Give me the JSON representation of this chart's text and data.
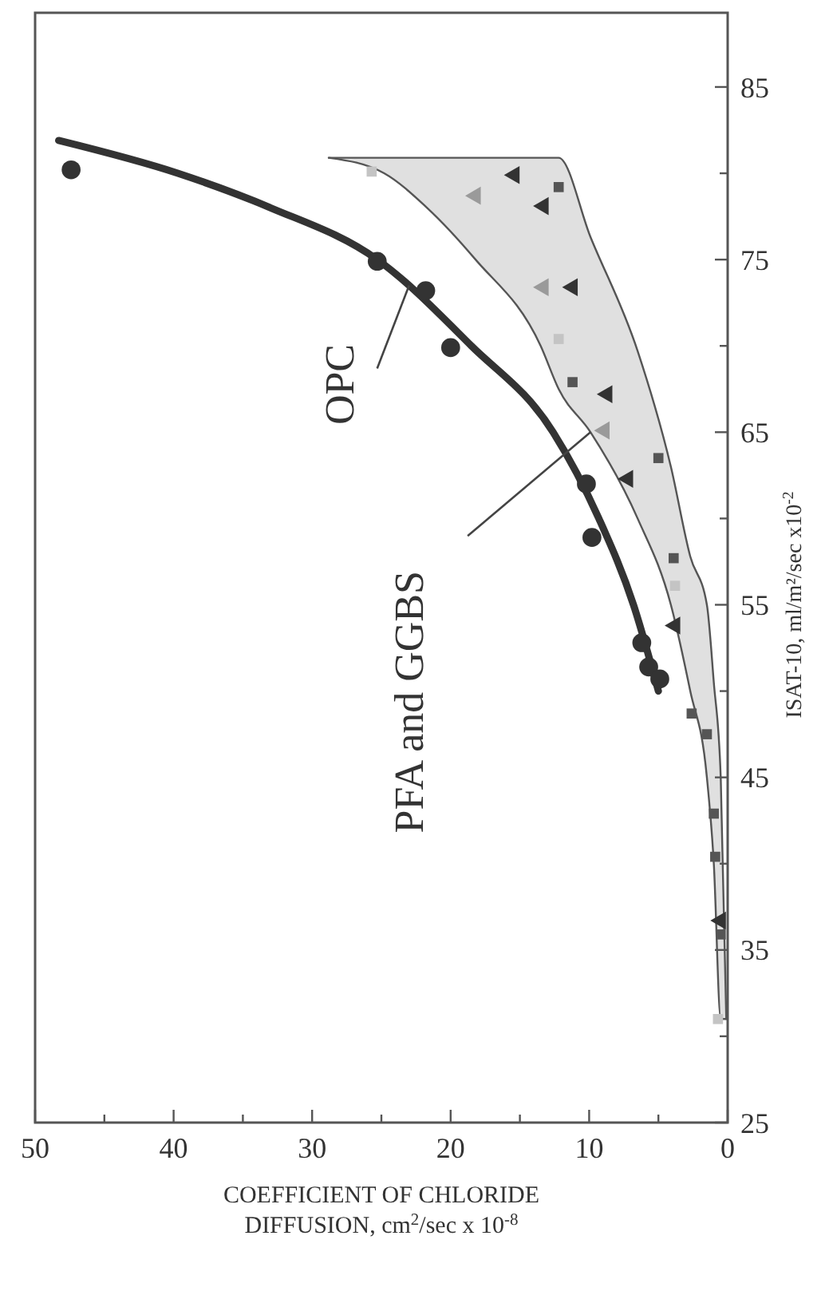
{
  "chart_data": {
    "type": "scatter",
    "xlabel": "COEFFICIENT OF CHLORIDE DIFFUSION, cm$^{2}$/sec x 10$^{-8}$",
    "ylabel": "ISAT-10, ml/m²/sec x10$^{-2}$",
    "xlim": [
      50,
      0
    ],
    "ylim": [
      25,
      89.3
    ],
    "xticks": [
      50,
      {
        "value": 45,
        "label": null
      },
      40,
      {
        "value": 35,
        "label": null
      },
      30,
      {
        "value": 25,
        "label": null
      },
      20,
      {
        "value": 15,
        "label": null
      },
      10,
      {
        "value": 5,
        "label": null
      },
      0
    ],
    "yticks": [
      25,
      {
        "value": 30,
        "label": null
      },
      35,
      {
        "value": 40,
        "label": null
      },
      45,
      {
        "value": 50,
        "label": null
      },
      55,
      {
        "value": 60,
        "label": null
      },
      65,
      {
        "value": 70,
        "label": null
      },
      75,
      {
        "value": 80,
        "label": null
      },
      85
    ],
    "grid": false,
    "series": [
      {
        "type": "line",
        "color": "#555555",
        "x": [
          0.1,
          0.5,
          1.0,
          1.5,
          2.7,
          4.1,
          6.5,
          9.9,
          12.2,
          13.5,
          18.2,
          21.7,
          24.8,
          28.8
        ],
        "values": [
          null,
          null,
          null,
          null,
          null,
          null,
          null,
          null,
          null,
          null,
          null,
          null,
          null,
          null
        ],
        "lower": [
          31,
          31,
          40,
          45,
          50,
          55,
          60,
          65,
          67.5,
          70,
          75,
          78,
          80,
          80.9
        ],
        "upper": [
          31,
          45,
          50.5,
          55,
          57.8,
          63,
          69.7,
          76.3,
          80.9,
          80.9,
          80.9,
          80.9,
          80.9,
          80.9
        ]
      },
      {
        "type": "line",
        "color": "#555555",
        "marker": "none",
        "x": [
          0.1,
          0.5,
          1.0,
          1.5,
          2.7,
          4.1,
          6.5,
          9.9,
          12.2,
          13.5,
          18.2,
          21.7,
          24.8,
          28.8
        ],
        "values": [
          31,
          31,
          40,
          45,
          50,
          55,
          60,
          65,
          67.5,
          70,
          75,
          78,
          80,
          80.9
        ]
      },
      {
        "type": "line",
        "color": "#555555",
        "marker": "none",
        "x": [
          0.1,
          0.5,
          1.0,
          1.5,
          2.7,
          4.1,
          6.5,
          9.9,
          12.2,
          13.5,
          18.2,
          21.7,
          24.8,
          28.8
        ],
        "values": [
          31,
          45,
          50.5,
          55,
          57.8,
          63,
          69.7,
          76.3,
          80.9,
          80.9,
          80.9,
          80.9,
          80.9,
          80.9
        ]
      },
      {
        "type": "line",
        "color": "#333333",
        "marker": "none",
        "line_style": "solid",
        "x": [
          5.0,
          6.8,
          9.3,
          12.6,
          18.5,
          25.3,
          33,
          39.7,
          48.3
        ],
        "values": [
          50,
          55,
          60,
          65,
          70,
          75,
          78,
          80,
          81.9
        ]
      },
      {
        "color": "#333333",
        "marker": "circle",
        "x": [
          47.4,
          25.3,
          21.8,
          20.0,
          10.2,
          9.8,
          6.2,
          5.7,
          4.9
        ],
        "values": [
          80.2,
          74.9,
          73.2,
          69.9,
          62.0,
          58.9,
          52.8,
          51.4,
          50.7
        ]
      },
      {
        "color": "#333333",
        "marker": "triangle",
        "x": [
          15.4,
          13.3,
          11.2,
          8.7,
          7.2,
          3.8,
          0.5
        ],
        "values": [
          79.9,
          78.1,
          73.4,
          67.2,
          62.3,
          53.8,
          36.7
        ]
      },
      {
        "color": "#9a9a9a",
        "marker": "triangle",
        "x": [
          18.2,
          13.3,
          8.9
        ],
        "values": [
          78.7,
          73.4,
          65.1
        ]
      },
      {
        "color": "#555555",
        "marker": "square",
        "x": [
          12.2,
          11.2,
          5.0,
          3.9,
          2.6,
          1.5,
          1.0,
          0.9,
          0.5
        ],
        "values": [
          79.2,
          67.9,
          63.5,
          57.7,
          48.7,
          47.5,
          42.9,
          40.4,
          35.9
        ]
      },
      {
        "color": "#c4c4c4",
        "marker": "square",
        "x": [
          25.7,
          12.2,
          3.8,
          0.7
        ],
        "values": [
          80.1,
          70.4,
          56.1,
          31.0
        ]
      }
    ],
    "annotations": [
      {
        "text": "OPC",
        "x": 23,
        "y": 73.5
      },
      {
        "text": "PFA and GGBS",
        "x": 9.9,
        "y": 65
      }
    ]
  }
}
